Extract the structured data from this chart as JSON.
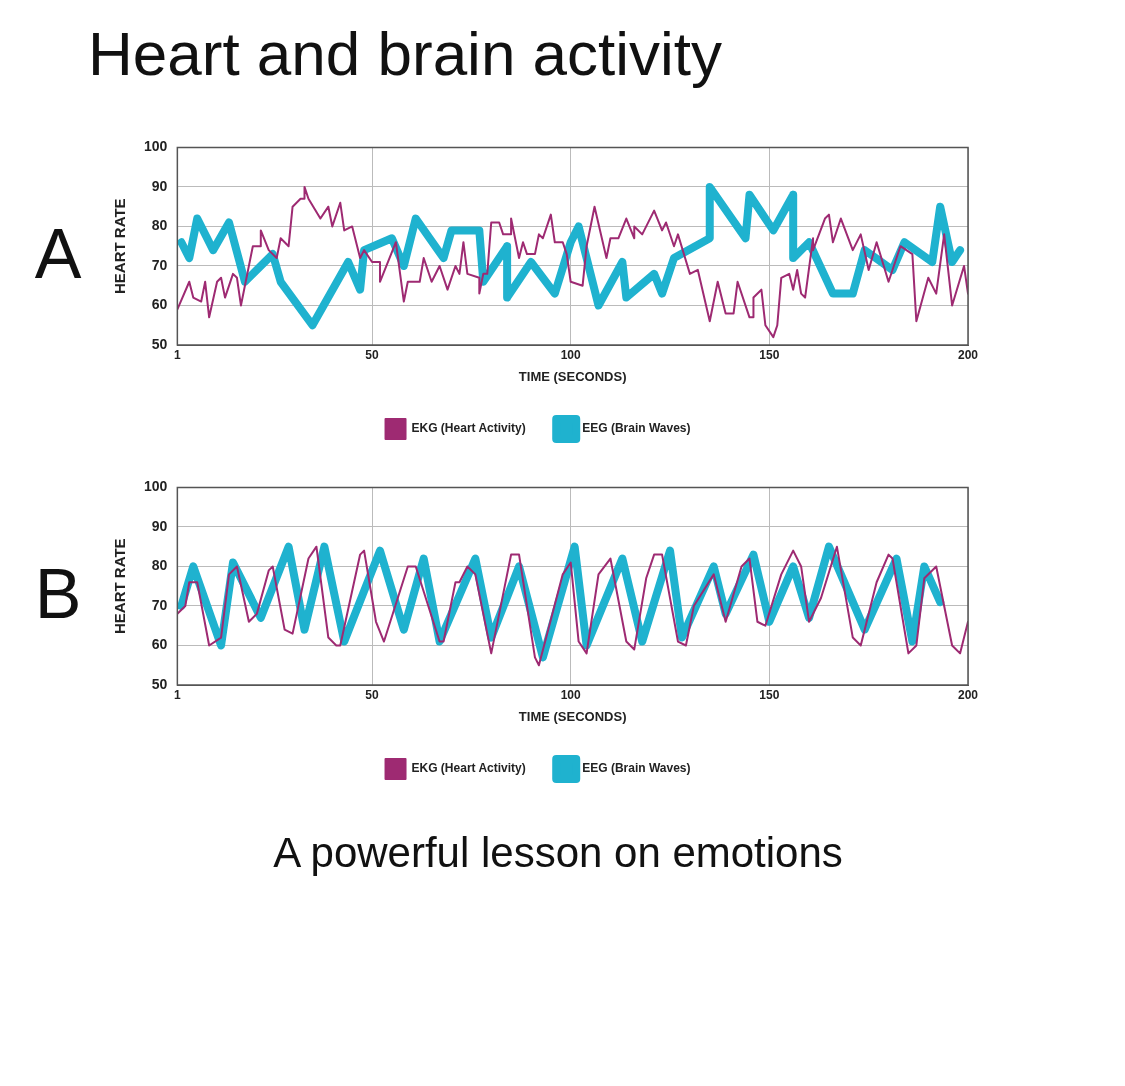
{
  "chart_data": [
    {
      "type": "line",
      "title": "Heart and brain activity",
      "subtitle": "A",
      "xlabel": "TIME (SECONDS)",
      "ylabel": "HEART RATE",
      "xlim": [
        1,
        200
      ],
      "xticks": [
        1,
        50,
        100,
        150,
        200
      ],
      "ylim": [
        50,
        100
      ],
      "yticks": [
        50,
        60,
        70,
        80,
        90,
        100
      ],
      "grid": true,
      "legend": "bottom",
      "marker": "none",
      "series": [
        {
          "name": "EKG (Heart Activity)",
          "color": "#9e2a72",
          "x": [
            1,
            4,
            5,
            7,
            8,
            9,
            11,
            12,
            13,
            15,
            16,
            17,
            20,
            22,
            22,
            24,
            26,
            27,
            29,
            30,
            32,
            33,
            33,
            34,
            37,
            39,
            40,
            42,
            43,
            45,
            47,
            48,
            50,
            52,
            52,
            56,
            58,
            59,
            62,
            63,
            65,
            67,
            69,
            71,
            72,
            73,
            74,
            77,
            77,
            78,
            79,
            80,
            82,
            83,
            85,
            85,
            87,
            88,
            89,
            91,
            92,
            93,
            95,
            96,
            98,
            99,
            100,
            103,
            104,
            106,
            109,
            110,
            112,
            114,
            116,
            116,
            118,
            121,
            123,
            124,
            126,
            127,
            130,
            132,
            135,
            137,
            139,
            141,
            142,
            145,
            146,
            146,
            148,
            149,
            151,
            152,
            153,
            155,
            156,
            157,
            158,
            159,
            161,
            161,
            164,
            165,
            166,
            168,
            171,
            173,
            175,
            177,
            180,
            183,
            186,
            187,
            190,
            192,
            194,
            196,
            199,
            200
          ],
          "values": [
            59,
            66,
            62,
            61,
            66,
            57,
            66,
            67,
            62,
            68,
            67,
            60,
            75,
            75,
            79,
            74,
            72,
            77,
            75,
            85,
            87,
            87,
            90,
            87,
            82,
            85,
            80,
            86,
            79,
            80,
            72,
            74,
            71,
            71,
            66,
            76,
            61,
            66,
            66,
            72,
            66,
            70,
            64,
            70,
            68,
            76,
            68,
            67,
            63,
            68,
            68,
            81,
            81,
            78,
            78,
            82,
            72,
            76,
            73,
            73,
            78,
            77,
            83,
            76,
            76,
            73,
            66,
            65,
            75,
            85,
            72,
            77,
            77,
            82,
            77,
            80,
            78,
            84,
            79,
            81,
            75,
            78,
            68,
            69,
            56,
            66,
            58,
            58,
            66,
            57,
            57,
            62,
            64,
            55,
            52,
            55,
            67,
            68,
            64,
            69,
            63,
            62,
            77,
            74,
            82,
            83,
            76,
            82,
            74,
            78,
            69,
            76,
            66,
            75,
            73,
            56,
            67,
            63,
            78,
            60,
            70,
            63
          ]
        },
        {
          "name": "EEG (Brain Waves)",
          "color": "#1fb2cf",
          "x": [
            2,
            4,
            6,
            10,
            14,
            18,
            25,
            27,
            35,
            44,
            47,
            48,
            55,
            58,
            61,
            68,
            70,
            77,
            78,
            84,
            84,
            90,
            96,
            100,
            102,
            107,
            113,
            114,
            121,
            123,
            126,
            135,
            135,
            144,
            145,
            151,
            156,
            156,
            160,
            166,
            171,
            174,
            181,
            184,
            191,
            193,
            196,
            198
          ],
          "values": [
            76,
            72,
            82,
            74,
            81,
            66,
            73,
            66,
            55,
            71,
            64,
            74,
            77,
            70,
            82,
            72,
            79,
            79,
            66,
            75,
            62,
            71,
            63,
            76,
            80,
            60,
            71,
            62,
            68,
            63,
            72,
            77,
            90,
            77,
            88,
            79,
            88,
            72,
            76,
            63,
            63,
            74,
            69,
            76,
            71,
            85,
            71,
            74
          ]
        }
      ]
    },
    {
      "type": "line",
      "subtitle": "B",
      "xlabel": "TIME (SECONDS)",
      "ylabel": "HEART RATE",
      "xlim": [
        1,
        200
      ],
      "xticks": [
        1,
        50,
        100,
        150,
        200
      ],
      "ylim": [
        50,
        100
      ],
      "yticks": [
        50,
        60,
        70,
        80,
        90,
        100
      ],
      "grid": true,
      "legend": "bottom",
      "marker": "none",
      "annotations": [
        "A powerful lesson on emotions"
      ],
      "series": [
        {
          "name": "EKG (Heart Activity)",
          "color": "#9e2a72",
          "x": [
            1,
            3,
            4,
            6,
            9,
            12,
            14,
            16,
            19,
            21,
            24,
            25,
            28,
            30,
            34,
            36,
            39,
            41,
            42,
            47,
            48,
            51,
            53,
            59,
            61,
            67,
            68,
            71,
            72,
            74,
            76,
            80,
            85,
            87,
            91,
            92,
            98,
            100,
            102,
            104,
            107,
            110,
            114,
            116,
            119,
            121,
            123,
            127,
            129,
            131,
            136,
            139,
            143,
            145,
            147,
            149,
            153,
            156,
            158,
            160,
            163,
            167,
            171,
            173,
            177,
            180,
            181,
            185,
            187,
            189,
            192,
            196,
            198,
            200
          ],
          "values": [
            68,
            70,
            76,
            76,
            60,
            62,
            78,
            80,
            66,
            68,
            79,
            80,
            64,
            63,
            82,
            85,
            62,
            60,
            60,
            83,
            84,
            66,
            61,
            80,
            80,
            61,
            61,
            76,
            76,
            80,
            78,
            58,
            83,
            83,
            57,
            55,
            78,
            81,
            61,
            58,
            78,
            82,
            61,
            59,
            77,
            83,
            83,
            61,
            60,
            70,
            78,
            66,
            80,
            82,
            66,
            65,
            78,
            84,
            80,
            66,
            72,
            85,
            62,
            60,
            76,
            83,
            82,
            58,
            60,
            77,
            80,
            60,
            58,
            66
          ]
        },
        {
          "name": "EEG (Brain Waves)",
          "color": "#1fb2cf",
          "x": [
            2,
            5,
            12,
            15,
            22,
            29,
            33,
            38,
            43,
            52,
            58,
            63,
            67,
            76,
            80,
            87,
            93,
            101,
            104,
            113,
            118,
            125,
            128,
            136,
            139,
            146,
            150,
            156,
            160,
            165,
            174,
            182,
            186,
            189,
            193
          ],
          "values": [
            70,
            80,
            60,
            81,
            67,
            85,
            64,
            85,
            61,
            84,
            64,
            82,
            61,
            82,
            62,
            80,
            57,
            85,
            60,
            82,
            61,
            84,
            62,
            80,
            68,
            83,
            66,
            80,
            67,
            85,
            64,
            82,
            61,
            80,
            71
          ]
        }
      ]
    }
  ]
}
